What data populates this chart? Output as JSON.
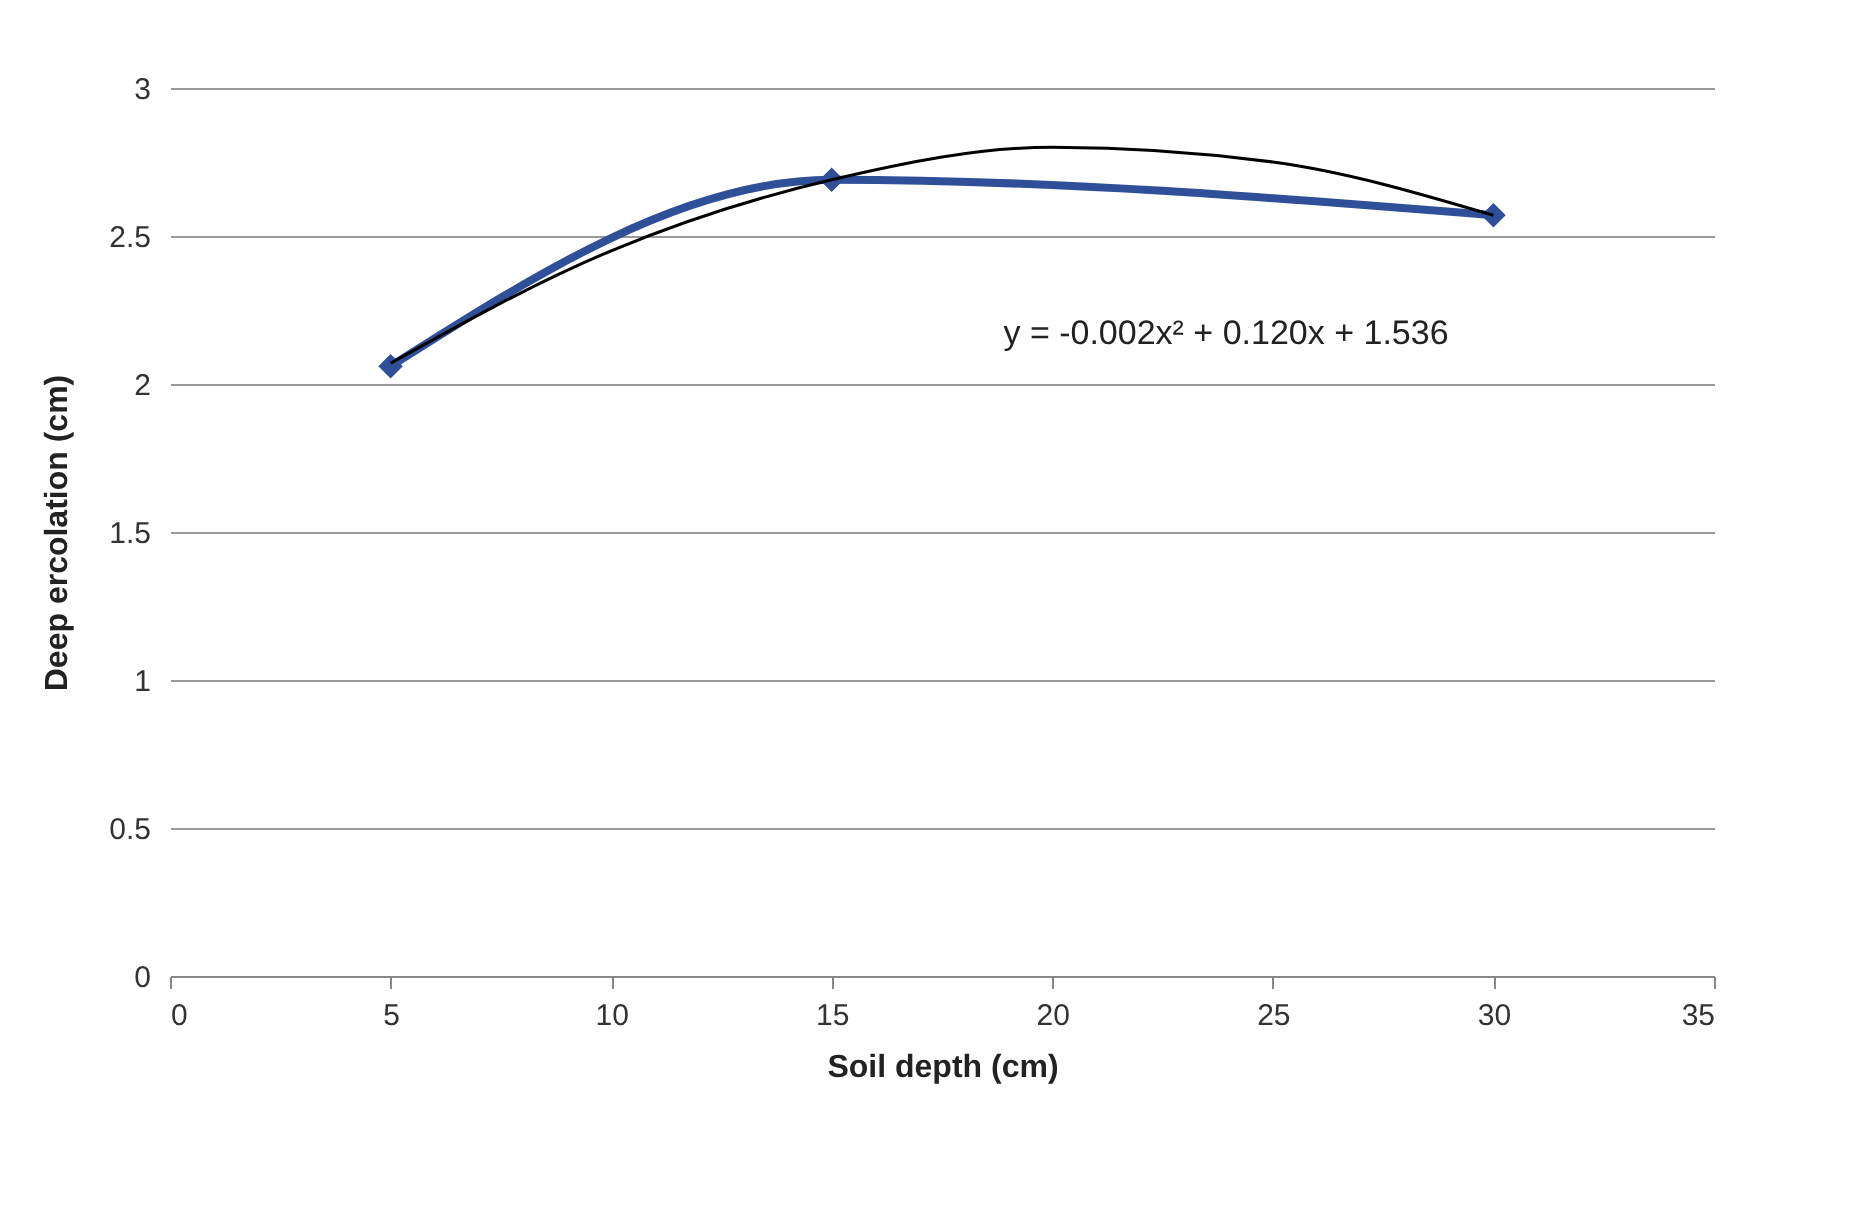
{
  "chart_data": {
    "type": "line",
    "xlabel": "Soil depth (cm)",
    "ylabel": "Deep ercolation (cm)",
    "xlim": [
      0,
      35
    ],
    "xticks": [
      0,
      5,
      10,
      15,
      20,
      25,
      30,
      35
    ],
    "ylim": [
      0,
      3
    ],
    "yticks": [
      0,
      0.5,
      1,
      1.5,
      2,
      2.5,
      3
    ],
    "grid": "y",
    "series": [
      {
        "color": "#2f4f99",
        "x": [
          5,
          15,
          30
        ],
        "values": [
          2.06,
          2.69,
          2.57
        ],
        "marker": "diamond",
        "line_style": "solid"
      },
      {
        "type": "line",
        "color": "#000000",
        "x": [
          5,
          10,
          15,
          20,
          25,
          30
        ],
        "values": [
          2.07,
          2.45,
          2.69,
          2.8,
          2.75,
          2.57
        ],
        "marker": "none",
        "line_style": "solid"
      }
    ],
    "annotations": [
      "y = -0.002x² + 0.120x + 1.536"
    ]
  }
}
